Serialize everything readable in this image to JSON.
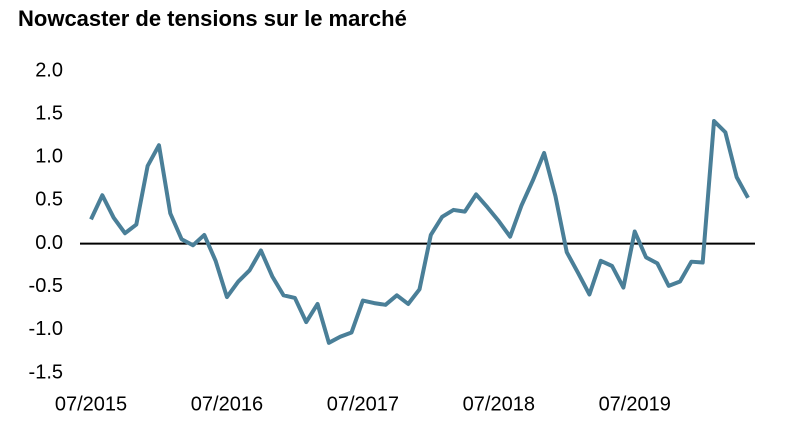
{
  "chart_data": {
    "type": "line",
    "title": "Nowcaster de tensions sur le marché",
    "categories": [
      "07/2015",
      null,
      null,
      null,
      null,
      null,
      null,
      null,
      null,
      null,
      null,
      null,
      "07/2016",
      null,
      null,
      null,
      null,
      null,
      null,
      null,
      null,
      null,
      null,
      null,
      "07/2017",
      null,
      null,
      null,
      null,
      null,
      null,
      null,
      null,
      null,
      null,
      null,
      "07/2018",
      null,
      null,
      null,
      null,
      null,
      null,
      null,
      null,
      null,
      null,
      null,
      "07/2019",
      null,
      null,
      null,
      null,
      null,
      null,
      null,
      null,
      null,
      null
    ],
    "series": [
      {
        "color": "#4a7f98",
        "values": [
          0.28,
          0.56,
          0.3,
          0.12,
          0.22,
          0.9,
          1.14,
          0.35,
          0.05,
          -0.02,
          0.1,
          -0.2,
          -0.62,
          -0.44,
          -0.31,
          -0.08,
          -0.38,
          -0.6,
          -0.63,
          -0.91,
          -0.7,
          -1.15,
          -1.08,
          -1.03,
          -0.66,
          -0.69,
          -0.71,
          -0.6,
          -0.7,
          -0.53,
          0.1,
          0.31,
          0.39,
          0.37,
          0.57,
          0.42,
          0.26,
          0.08,
          0.44,
          0.73,
          1.05,
          0.55,
          -0.1,
          -0.34,
          -0.59,
          -0.2,
          -0.26,
          -0.51,
          0.14,
          -0.16,
          -0.23,
          -0.49,
          -0.44,
          -0.21,
          -0.22,
          1.42,
          1.29,
          0.77,
          0.53
        ]
      }
    ],
    "ylim": [
      -1.5,
      2.0
    ],
    "yticks": [
      {
        "value": 2.0,
        "label": "2.0"
      },
      {
        "value": 1.5,
        "label": "1.5"
      },
      {
        "value": 1.0,
        "label": "1.0"
      },
      {
        "value": 0.5,
        "label": "0.5"
      },
      {
        "value": 0.0,
        "label": "0.0"
      },
      {
        "value": -0.5,
        "label": "-0.5"
      },
      {
        "value": -1.0,
        "label": "-1.0"
      },
      {
        "value": -1.5,
        "label": "-1.5"
      }
    ],
    "zero_line_color": "#000000"
  }
}
